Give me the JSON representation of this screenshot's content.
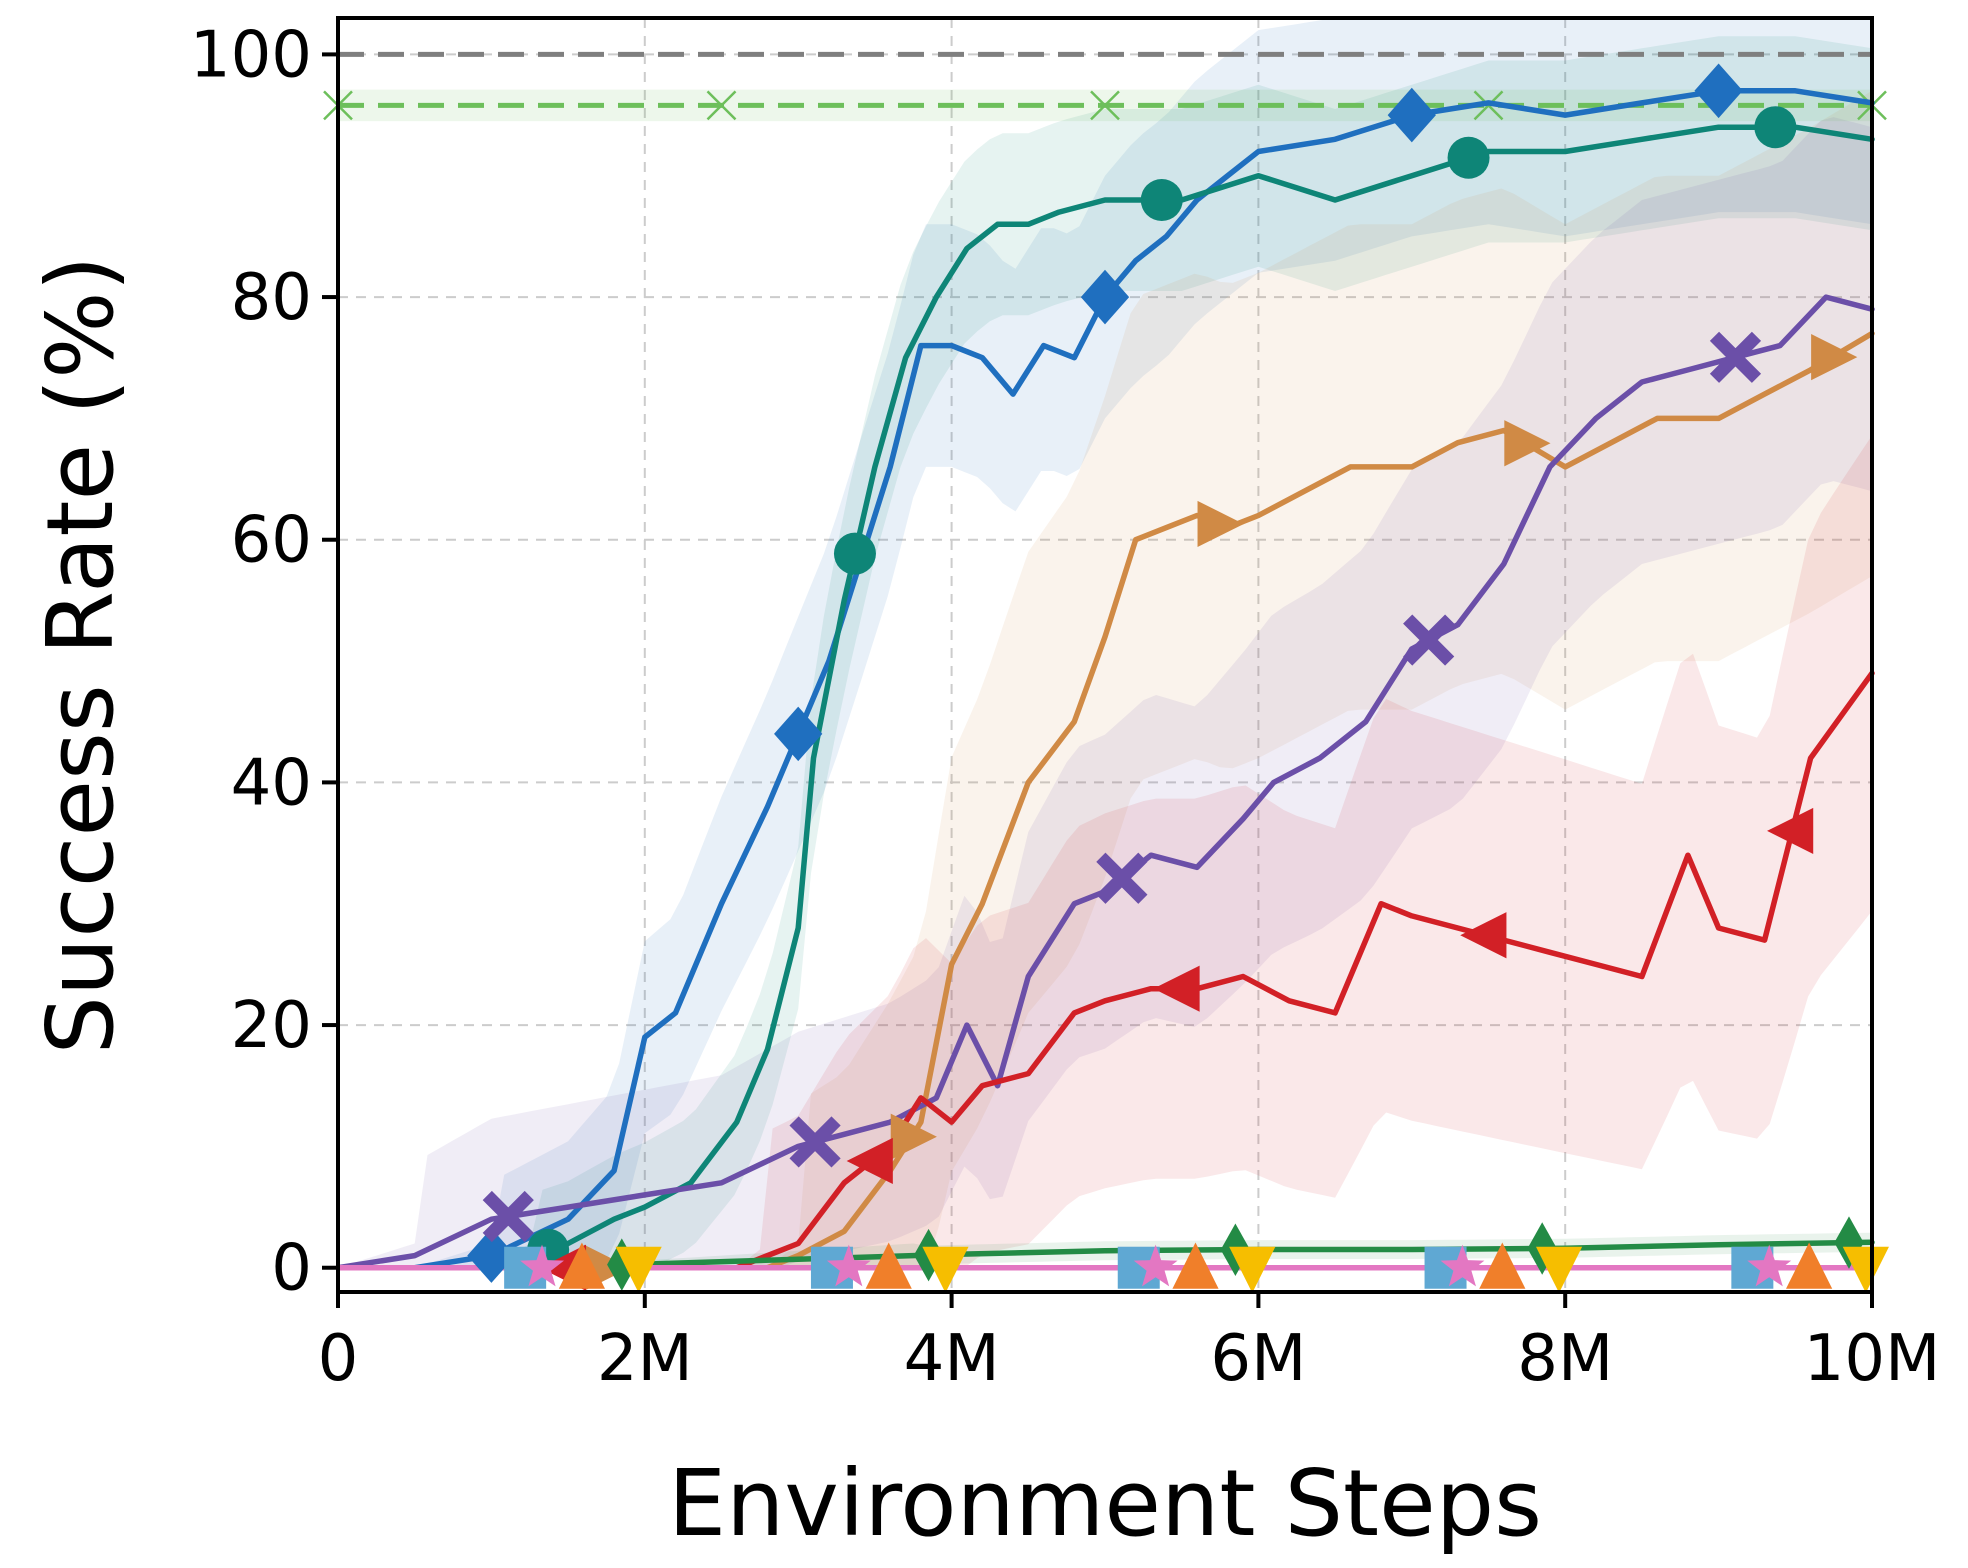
{
  "chart_data": {
    "type": "line",
    "title": "",
    "xlabel": "Environment Steps",
    "ylabel": "Success Rate (%)",
    "xlim": [
      0,
      10000000
    ],
    "ylim": [
      -2,
      103
    ],
    "x_ticks": [
      0,
      2000000,
      4000000,
      6000000,
      8000000,
      10000000
    ],
    "x_tick_labels": [
      "0",
      "2M",
      "4M",
      "6M",
      "8M",
      "10M"
    ],
    "y_ticks": [
      0,
      20,
      40,
      60,
      80,
      100
    ],
    "y_tick_labels": [
      "0",
      "20",
      "40",
      "60",
      "80",
      "100"
    ],
    "grid": true,
    "reference_lines": [
      {
        "y": 100,
        "color": "#7f7f7f",
        "style": "dashed"
      },
      {
        "y": 95.8,
        "color": "#6dbf5b",
        "style": "dashed",
        "marker": "x",
        "band": [
          94.5,
          97.1
        ]
      }
    ],
    "series": [
      {
        "color": "#1f6fbf",
        "marker": "diamond",
        "x": [
          0,
          0.5,
          1,
          1.5,
          1.8,
          2,
          2.2,
          2.5,
          2.8,
          3,
          3.2,
          3.4,
          3.6,
          3.8,
          4,
          4.2,
          4.4,
          4.6,
          4.8,
          5,
          5.2,
          5.4,
          5.6,
          5.8,
          6,
          6.5,
          7,
          7.5,
          8,
          8.5,
          9,
          9.5,
          10
        ],
        "y": [
          0,
          0,
          1,
          4,
          8,
          19,
          21,
          30,
          38,
          44,
          50,
          58,
          66,
          76,
          76,
          75,
          72,
          76,
          75,
          80,
          83,
          85,
          88,
          90,
          92,
          93,
          95,
          96,
          95,
          96,
          97,
          97,
          96
        ],
        "band": [
          12,
          20
        ]
      },
      {
        "color": "#0e8577",
        "marker": "circle",
        "x": [
          0,
          0.5,
          1,
          1.5,
          1.8,
          2,
          2.3,
          2.6,
          2.8,
          3,
          3.1,
          3.3,
          3.5,
          3.7,
          3.9,
          4.1,
          4.3,
          4.5,
          4.7,
          5,
          5.5,
          6,
          6.5,
          7,
          7.5,
          8,
          8.5,
          9,
          9.5,
          10
        ],
        "y": [
          0,
          0,
          0,
          2,
          4,
          5,
          7,
          12,
          18,
          28,
          42,
          55,
          66,
          75,
          80,
          84,
          86,
          86,
          87,
          88,
          88,
          90,
          88,
          90,
          92,
          92,
          93,
          94,
          94,
          93
        ],
        "band": [
          10,
          15
        ]
      },
      {
        "color": "#d08a45",
        "marker": "triangle-right",
        "x": [
          0,
          1,
          2,
          2.8,
          3,
          3.3,
          3.6,
          3.8,
          4,
          4.2,
          4.5,
          4.8,
          5,
          5.2,
          5.4,
          5.6,
          5.8,
          6,
          6.3,
          6.6,
          7,
          7.3,
          7.6,
          8,
          8.3,
          8.6,
          9,
          9.3,
          9.6,
          10
        ],
        "y": [
          0,
          0,
          0,
          0,
          1,
          3,
          8,
          12,
          25,
          30,
          40,
          45,
          52,
          60,
          61,
          62,
          61,
          62,
          64,
          66,
          66,
          68,
          69,
          66,
          68,
          70,
          70,
          72,
          74,
          77
        ],
        "band": [
          25,
          40
        ]
      },
      {
        "color": "#6b4fa8",
        "marker": "x-bold",
        "x": [
          0,
          0.5,
          1,
          1.5,
          2,
          2.5,
          3,
          3.3,
          3.6,
          3.9,
          4.1,
          4.3,
          4.5,
          4.8,
          5,
          5.3,
          5.6,
          5.9,
          6.1,
          6.4,
          6.7,
          7,
          7.3,
          7.6,
          7.9,
          8.2,
          8.5,
          8.8,
          9.1,
          9.4,
          9.7,
          10
        ],
        "y": [
          0,
          1,
          4,
          5,
          6,
          7,
          10,
          11,
          12,
          14,
          20,
          15,
          24,
          30,
          31,
          34,
          33,
          37,
          40,
          42,
          45,
          51,
          53,
          58,
          66,
          70,
          73,
          74,
          75,
          76,
          80,
          79
        ],
        "band": [
          15,
          30
        ]
      },
      {
        "color": "#d22026",
        "marker": "triangle-left",
        "x": [
          0,
          1,
          2,
          2.6,
          3,
          3.3,
          3.6,
          3.8,
          4,
          4.2,
          4.5,
          4.8,
          5,
          5.3,
          5.6,
          5.9,
          6.2,
          6.5,
          6.8,
          7,
          7.3,
          7.6,
          7.9,
          8.2,
          8.5,
          8.8,
          9,
          9.3,
          9.6,
          10
        ],
        "y": [
          0,
          0,
          0,
          0,
          2,
          7,
          10,
          14,
          12,
          15,
          16,
          21,
          22,
          23,
          23,
          24,
          22,
          21,
          30,
          29,
          28,
          27,
          26,
          25,
          24,
          34,
          28,
          27,
          42,
          49
        ],
        "band": [
          20,
          40
        ]
      },
      {
        "color": "#238b45",
        "marker": "diamond-thin",
        "x": [
          0,
          1,
          2,
          3,
          4,
          5,
          6,
          7,
          8,
          9,
          10
        ],
        "y": [
          0,
          0,
          0.3,
          0.7,
          1.1,
          1.4,
          1.5,
          1.5,
          1.6,
          1.9,
          2.1
        ],
        "band": [
          1.5,
          3
        ]
      },
      {
        "color": "#5fa8d3",
        "marker": "square",
        "x": [
          0,
          2,
          4,
          6,
          8,
          10
        ],
        "y": [
          0,
          0,
          0,
          0,
          0,
          0
        ],
        "band": [
          0,
          0
        ]
      },
      {
        "color": "#f07f2a",
        "marker": "triangle-up",
        "x": [
          0,
          2,
          4,
          6,
          8,
          10
        ],
        "y": [
          0,
          0,
          0,
          0,
          0,
          0
        ],
        "band": [
          0,
          0
        ]
      },
      {
        "color": "#f6be00",
        "marker": "triangle-down",
        "x": [
          0,
          2,
          4,
          6,
          8,
          10
        ],
        "y": [
          0,
          0,
          0,
          0,
          0,
          0
        ],
        "band": [
          0,
          0
        ]
      },
      {
        "color": "#e377c2",
        "marker": "star",
        "x": [
          0,
          2,
          4,
          6,
          8,
          10
        ],
        "y": [
          0,
          0,
          0,
          0,
          0,
          0
        ],
        "band": [
          0,
          0
        ]
      }
    ]
  }
}
